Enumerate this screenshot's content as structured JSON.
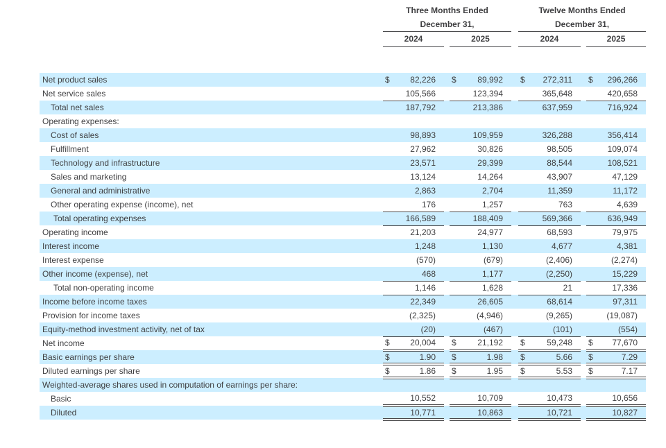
{
  "colors": {
    "row_highlight": "#cceeff",
    "rule": "#48484a",
    "text": "#3f3f41"
  },
  "table": {
    "currency_symbol": "$",
    "groups": [
      {
        "title": "Three Months Ended",
        "subtitle": "December 31,",
        "years": [
          "2024",
          "2025"
        ]
      },
      {
        "title": "Twelve Months Ended",
        "subtitle": "December 31,",
        "years": [
          "2024",
          "2025"
        ]
      }
    ],
    "rows": [
      {
        "label": "Net product sales",
        "indent": 0,
        "shaded": true,
        "dollar": true,
        "underline": "none",
        "values": [
          "82,226",
          "89,992",
          "272,311",
          "296,266"
        ]
      },
      {
        "label": "Net service sales",
        "indent": 0,
        "shaded": false,
        "dollar": false,
        "underline": "single",
        "values": [
          "105,566",
          "123,394",
          "365,648",
          "420,658"
        ]
      },
      {
        "label": "Total net sales",
        "indent": 1,
        "shaded": true,
        "dollar": false,
        "underline": "none",
        "values": [
          "187,792",
          "213,386",
          "637,959",
          "716,924"
        ]
      },
      {
        "label": "Operating expenses:",
        "indent": 0,
        "shaded": false,
        "dollar": false,
        "underline": "none",
        "values": [
          "",
          "",
          "",
          ""
        ]
      },
      {
        "label": "Cost of sales",
        "indent": 1,
        "shaded": true,
        "dollar": false,
        "underline": "none",
        "values": [
          "98,893",
          "109,959",
          "326,288",
          "356,414"
        ]
      },
      {
        "label": "Fulfillment",
        "indent": 1,
        "shaded": false,
        "dollar": false,
        "underline": "none",
        "values": [
          "27,962",
          "30,826",
          "98,505",
          "109,074"
        ]
      },
      {
        "label": "Technology and infrastructure",
        "indent": 1,
        "shaded": true,
        "dollar": false,
        "underline": "none",
        "values": [
          "23,571",
          "29,399",
          "88,544",
          "108,521"
        ]
      },
      {
        "label": "Sales and marketing",
        "indent": 1,
        "shaded": false,
        "dollar": false,
        "underline": "none",
        "values": [
          "13,124",
          "14,264",
          "43,907",
          "47,129"
        ]
      },
      {
        "label": "General and administrative",
        "indent": 1,
        "shaded": true,
        "dollar": false,
        "underline": "none",
        "values": [
          "2,863",
          "2,704",
          "11,359",
          "11,172"
        ]
      },
      {
        "label": "Other operating expense (income), net",
        "indent": 1,
        "shaded": false,
        "dollar": false,
        "underline": "single",
        "values": [
          "176",
          "1,257",
          "763",
          "4,639"
        ]
      },
      {
        "label": "Total operating expenses",
        "indent": 2,
        "shaded": true,
        "dollar": false,
        "underline": "single",
        "values": [
          "166,589",
          "188,409",
          "569,366",
          "636,949"
        ]
      },
      {
        "label": "Operating income",
        "indent": 0,
        "shaded": false,
        "dollar": false,
        "underline": "none",
        "values": [
          "21,203",
          "24,977",
          "68,593",
          "79,975"
        ]
      },
      {
        "label": "Interest income",
        "indent": 0,
        "shaded": true,
        "dollar": false,
        "underline": "none",
        "values": [
          "1,248",
          "1,130",
          "4,677",
          "4,381"
        ]
      },
      {
        "label": "Interest expense",
        "indent": 0,
        "shaded": false,
        "dollar": false,
        "underline": "none",
        "values": [
          "(570)",
          "(679)",
          "(2,406)",
          "(2,274)"
        ]
      },
      {
        "label": "Other income (expense), net",
        "indent": 0,
        "shaded": true,
        "dollar": false,
        "underline": "single",
        "values": [
          "468",
          "1,177",
          "(2,250)",
          "15,229"
        ]
      },
      {
        "label": "Total non-operating income",
        "indent": 2,
        "shaded": false,
        "dollar": false,
        "underline": "single",
        "values": [
          "1,146",
          "1,628",
          "21",
          "17,336"
        ]
      },
      {
        "label": "Income before income taxes",
        "indent": 0,
        "shaded": true,
        "dollar": false,
        "underline": "none",
        "values": [
          "22,349",
          "26,605",
          "68,614",
          "97,311"
        ]
      },
      {
        "label": "Provision for income taxes",
        "indent": 0,
        "shaded": false,
        "dollar": false,
        "underline": "none",
        "values": [
          "(2,325)",
          "(4,946)",
          "(9,265)",
          "(19,087)"
        ]
      },
      {
        "label": "Equity-method investment activity, net of tax",
        "indent": 0,
        "shaded": true,
        "dollar": false,
        "underline": "single",
        "values": [
          "(20)",
          "(467)",
          "(101)",
          "(554)"
        ]
      },
      {
        "label": "Net income",
        "indent": 0,
        "shaded": false,
        "dollar": true,
        "underline": "double",
        "values": [
          "20,004",
          "21,192",
          "59,248",
          "77,670"
        ]
      },
      {
        "label": "Basic earnings per share",
        "indent": 0,
        "shaded": true,
        "dollar": true,
        "underline": "double",
        "values": [
          "1.90",
          "1.98",
          "5.66",
          "7.29"
        ]
      },
      {
        "label": "Diluted earnings per share",
        "indent": 0,
        "shaded": false,
        "dollar": true,
        "underline": "double",
        "values": [
          "1.86",
          "1.95",
          "5.53",
          "7.17"
        ]
      },
      {
        "label": "Weighted-average shares used in computation of earnings per share:",
        "indent": 0,
        "shaded": true,
        "dollar": false,
        "underline": "none",
        "values": [
          "",
          "",
          "",
          ""
        ]
      },
      {
        "label": "Basic",
        "indent": 1,
        "shaded": false,
        "dollar": false,
        "underline": "double",
        "values": [
          "10,552",
          "10,709",
          "10,473",
          "10,656"
        ]
      },
      {
        "label": "Diluted",
        "indent": 1,
        "shaded": true,
        "dollar": false,
        "underline": "double",
        "values": [
          "10,771",
          "10,863",
          "10,721",
          "10,827"
        ]
      }
    ]
  }
}
